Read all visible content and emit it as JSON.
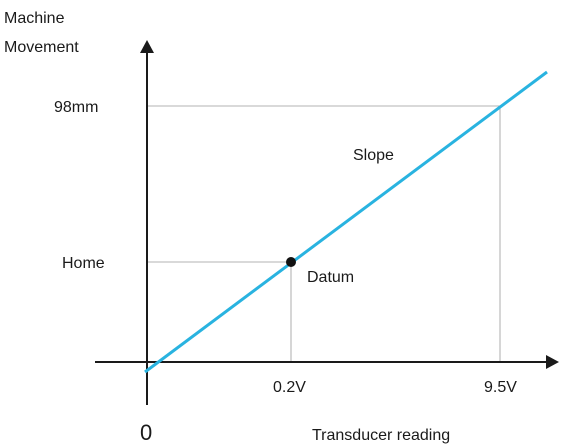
{
  "labels": {
    "y_axis_line1": "Machine",
    "y_axis_line2": "Movement",
    "x_axis": "Transducer reading",
    "origin": "0",
    "y_tick_top": "98mm",
    "y_tick_home": "Home",
    "x_tick_datum": "0.2V",
    "x_tick_end": "9.5V",
    "slope": "Slope",
    "datum": "Datum"
  },
  "colors": {
    "slope_line": "#29b3e0",
    "axes": "#1a1a1a",
    "guides": "#9a9a9a"
  }
}
